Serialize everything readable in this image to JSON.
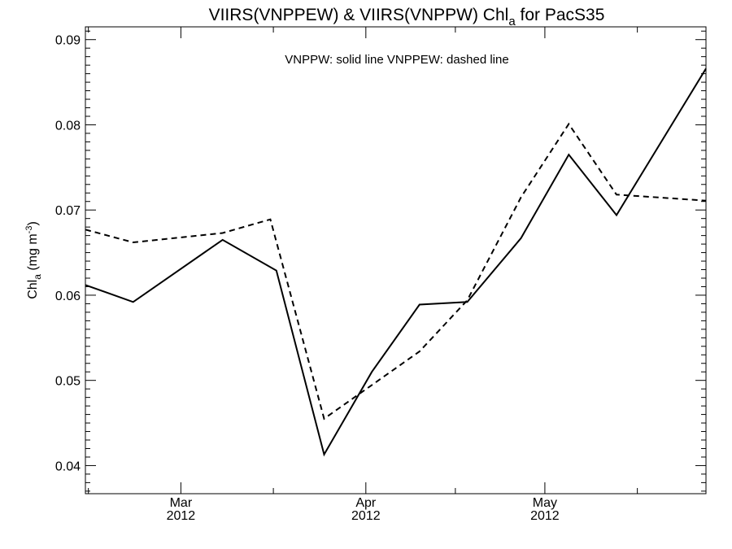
{
  "chart_data": {
    "type": "line",
    "title": {
      "prefix": "VIIRS(VNPPEW) & VIIRS(VNPPW)  Chl",
      "sub": "a",
      "suffix": " for PacS35"
    },
    "legend_note": "VNPPW: solid line   VNPPEW: dashed line",
    "ylabel": {
      "base": "Chl",
      "sub": "a",
      "mid": " (mg m",
      "sup": "-3",
      "end": ")"
    },
    "xlim": [
      "2012-02-14",
      "2012-05-28"
    ],
    "ylim": [
      0.0367,
      0.0915
    ],
    "yticks": [
      "0.04",
      "0.05",
      "0.06",
      "0.07",
      "0.08",
      "0.09"
    ],
    "x_major_ticks": [
      {
        "date": "2012-03-01",
        "month": "Mar",
        "year": "2012"
      },
      {
        "date": "2012-04-01",
        "month": "Apr",
        "year": "2012"
      },
      {
        "date": "2012-05-01",
        "month": "May",
        "year": "2012"
      }
    ],
    "series": [
      {
        "style": "solid",
        "x": [
          "2012-02-14",
          "2012-02-22",
          "2012-03-08",
          "2012-03-17",
          "2012-03-25",
          "2012-04-02",
          "2012-04-10",
          "2012-04-18",
          "2012-04-27",
          "2012-05-05",
          "2012-05-13",
          "2012-05-28"
        ],
        "values": [
          0.0612,
          0.0592,
          0.0665,
          0.0629,
          0.0413,
          0.051,
          0.0589,
          0.0592,
          0.0667,
          0.0765,
          0.0694,
          0.0866
        ]
      },
      {
        "style": "dashed",
        "x": [
          "2012-02-14",
          "2012-02-22",
          "2012-03-08",
          "2012-03-16",
          "2012-03-25",
          "2012-04-10",
          "2012-04-18",
          "2012-04-27",
          "2012-05-05",
          "2012-05-13",
          "2012-05-28"
        ],
        "values": [
          0.0677,
          0.0662,
          0.0673,
          0.0689,
          0.0455,
          0.0534,
          0.0594,
          0.0715,
          0.0801,
          0.0718,
          0.0711
        ]
      }
    ]
  }
}
